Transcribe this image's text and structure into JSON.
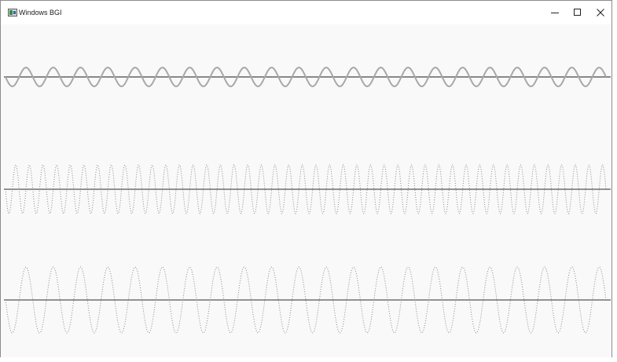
{
  "window": {
    "title": "Windows BGI",
    "icons": {
      "app": "app-window-icon",
      "minimize": "minimize-icon",
      "maximize": "maximize-icon",
      "close": "close-icon"
    }
  },
  "plots": [
    {
      "name": "sine-wave-top",
      "cycles": 22,
      "style": "solid",
      "color": "#a8a8a8",
      "axis_color": "#888888"
    },
    {
      "name": "sine-wave-middle",
      "cycles": 44,
      "style": "dotted",
      "color": "#8a8a8a",
      "axis_color": "#707070"
    },
    {
      "name": "sine-wave-bottom",
      "cycles": 22,
      "style": "dotted",
      "color": "#8a8a8a",
      "axis_color": "#707070"
    }
  ]
}
